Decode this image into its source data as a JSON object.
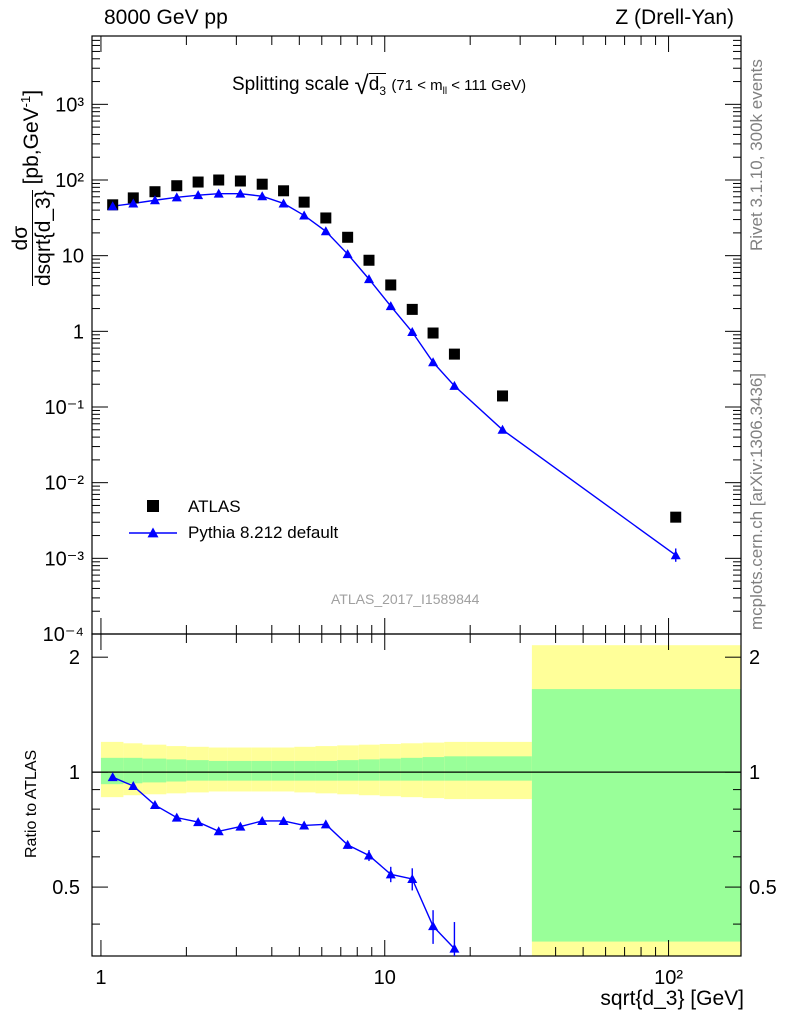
{
  "header": {
    "left": "8000 GeV pp",
    "right": "Z (Drell-Yan)"
  },
  "side_labels": {
    "rivet": "Rivet 3.1.10,  300k events",
    "mcplots": "mcplots.cern.ch [arXiv:1306.3436]"
  },
  "plot_title": {
    "main": "Splitting scale",
    "var": "d",
    "var_sub": "3",
    "range_pre": "(71 < m",
    "range_sub": "ll",
    "range_post": " < 111 GeV)"
  },
  "analysis_id": "ATLAS_2017_I1589844",
  "axis": {
    "y_main_label": "dσ/dsqrt{d_3} [pb,GeV⁻¹]",
    "y_main_num": "dσ",
    "y_main_den": "dsqrt{d_3}",
    "y_main_unit": " [pb,GeV",
    "y_main_unit_sup": "-1",
    "y_main_unit_end": "]",
    "y_ratio_label": "Ratio to ATLAS",
    "x_label": "sqrt{d_3} [GeV]"
  },
  "legend": {
    "data_label": "ATLAS",
    "mc_label": "Pythia 8.212 default"
  },
  "colors": {
    "data": "#000000",
    "mc": "#0000ff",
    "band_inner": "#99ff99",
    "band_outer": "#ffff99",
    "side_text": "#808080"
  },
  "chart_data": [
    {
      "type": "scatter",
      "panel": "main",
      "xscale": "log",
      "yscale": "log",
      "xlim": [
        0.93,
        180
      ],
      "ylim": [
        0.0001,
        8000
      ],
      "x_ticks": [
        "1",
        "10",
        "10²"
      ],
      "y_ticks": [
        "10⁻⁴",
        "10⁻³",
        "10⁻²",
        "10⁻¹",
        "1",
        "10",
        "10²",
        "10³"
      ],
      "series": [
        {
          "name": "ATLAS",
          "marker": "square",
          "x": [
            1.1,
            1.3,
            1.55,
            1.85,
            2.2,
            2.6,
            3.1,
            3.7,
            4.4,
            5.2,
            6.2,
            7.4,
            8.8,
            10.5,
            12.5,
            14.8,
            17.6,
            26,
            106
          ],
          "y": [
            47,
            58,
            70,
            84,
            94,
            100,
            97,
            88,
            72,
            51,
            31.5,
            17.5,
            8.7,
            4.1,
            1.95,
            0.95,
            0.5,
            0.14,
            0.0035
          ]
        },
        {
          "name": "Pythia 8.212 default",
          "marker": "triangle",
          "x": [
            1.1,
            1.3,
            1.55,
            1.85,
            2.2,
            2.6,
            3.1,
            3.7,
            4.4,
            5.2,
            6.2,
            7.4,
            8.8,
            10.5,
            12.5,
            14.8,
            17.6,
            26,
            106
          ],
          "y": [
            45,
            49,
            54,
            59,
            63,
            66,
            66,
            61,
            49,
            34,
            21,
            10.5,
            4.9,
            2.15,
            0.98,
            0.39,
            0.19,
            0.05,
            0.0011
          ]
        }
      ]
    },
    {
      "type": "line",
      "panel": "ratio",
      "xscale": "log",
      "xlim": [
        0.93,
        180
      ],
      "ylim": [
        0.33,
        2.3
      ],
      "y_ticks": [
        "0.5",
        "1",
        "2"
      ],
      "series": [
        {
          "name": "Pythia 8.212 default",
          "x": [
            1.1,
            1.3,
            1.55,
            1.85,
            2.2,
            2.6,
            3.1,
            3.7,
            4.4,
            5.2,
            6.2,
            7.4,
            8.8,
            10.5,
            12.5,
            14.8,
            17.6
          ],
          "y": [
            0.97,
            0.92,
            0.82,
            0.76,
            0.74,
            0.7,
            0.72,
            0.745,
            0.745,
            0.725,
            0.73,
            0.645,
            0.605,
            0.54,
            0.525,
            0.395,
            0.345
          ],
          "yerr": [
            0.01,
            0.01,
            0.01,
            0.01,
            0.01,
            0.01,
            0.01,
            0.01,
            0.01,
            0.01,
            0.01,
            0.015,
            0.02,
            0.025,
            0.035,
            0.04,
            0.06
          ]
        }
      ],
      "bands": {
        "edges": [
          1,
          1.2,
          1.4,
          1.7,
          2.0,
          2.4,
          2.8,
          3.4,
          4.0,
          4.8,
          5.7,
          6.8,
          8.1,
          9.6,
          11.4,
          13.6,
          16.2,
          19.4,
          33,
          180
        ],
        "inner_lo": [
          0.93,
          0.935,
          0.94,
          0.945,
          0.95,
          0.95,
          0.95,
          0.95,
          0.95,
          0.95,
          0.95,
          0.95,
          0.95,
          0.95,
          0.95,
          0.95,
          0.95,
          0.95,
          0.36
        ],
        "inner_hi": [
          1.09,
          1.09,
          1.085,
          1.08,
          1.075,
          1.07,
          1.07,
          1.07,
          1.07,
          1.07,
          1.07,
          1.075,
          1.08,
          1.085,
          1.09,
          1.095,
          1.1,
          1.1,
          1.65
        ],
        "outer_lo": [
          0.86,
          0.87,
          0.875,
          0.88,
          0.885,
          0.89,
          0.89,
          0.89,
          0.89,
          0.885,
          0.88,
          0.875,
          0.87,
          0.865,
          0.86,
          0.855,
          0.85,
          0.85,
          0.33
        ],
        "outer_hi": [
          1.2,
          1.19,
          1.18,
          1.17,
          1.165,
          1.16,
          1.16,
          1.16,
          1.16,
          1.165,
          1.17,
          1.175,
          1.18,
          1.185,
          1.19,
          1.195,
          1.2,
          1.2,
          2.15
        ]
      }
    }
  ]
}
